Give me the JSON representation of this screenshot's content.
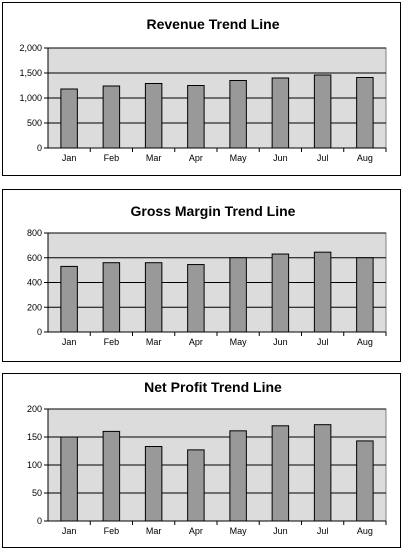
{
  "chart_data": [
    {
      "type": "bar",
      "title": "Revenue Trend Line",
      "categories": [
        "Jan",
        "Feb",
        "Mar",
        "Apr",
        "May",
        "Jun",
        "Jul",
        "Aug"
      ],
      "values": [
        1180,
        1240,
        1290,
        1250,
        1350,
        1400,
        1460,
        1410
      ],
      "ylim": [
        0,
        2000
      ],
      "yticks": [
        0,
        500,
        1000,
        1500,
        2000
      ],
      "ytick_labels": [
        "0",
        "500",
        "1,000",
        "1,500",
        "2,000"
      ],
      "grid": true,
      "colors": {
        "bar": "#999999",
        "plot_bg": "#dcdcdc"
      }
    },
    {
      "type": "bar",
      "title": "Gross Margin Trend Line",
      "categories": [
        "Jan",
        "Feb",
        "Mar",
        "Apr",
        "May",
        "Jun",
        "Jul",
        "Aug"
      ],
      "values": [
        530,
        560,
        560,
        545,
        600,
        630,
        645,
        600
      ],
      "ylim": [
        0,
        800
      ],
      "yticks": [
        0,
        200,
        400,
        600,
        800
      ],
      "ytick_labels": [
        "0",
        "200",
        "400",
        "600",
        "800"
      ],
      "grid": true,
      "colors": {
        "bar": "#999999",
        "plot_bg": "#dcdcdc"
      }
    },
    {
      "type": "bar",
      "title": "Net Profit Trend Line",
      "categories": [
        "Jan",
        "Feb",
        "Mar",
        "Apr",
        "May",
        "Jun",
        "Jul",
        "Aug"
      ],
      "values": [
        150,
        160,
        133,
        127,
        161,
        170,
        172,
        143
      ],
      "ylim": [
        0,
        200
      ],
      "yticks": [
        0,
        50,
        100,
        150,
        200
      ],
      "ytick_labels": [
        "0",
        "50",
        "100",
        "150",
        "200"
      ],
      "grid": true,
      "colors": {
        "bar": "#999999",
        "plot_bg": "#dcdcdc"
      }
    }
  ]
}
